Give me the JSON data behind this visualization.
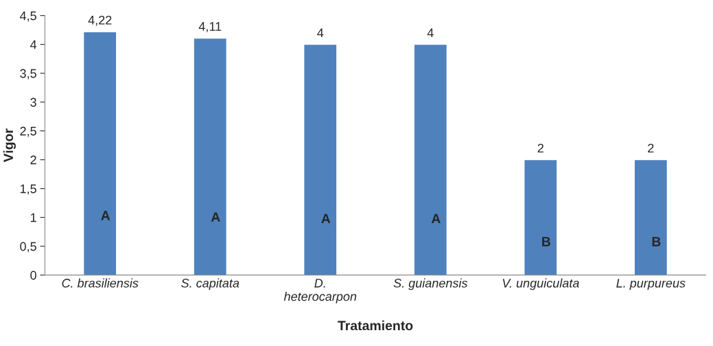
{
  "chart_data": {
    "type": "bar",
    "xlabel": "Tratamiento",
    "ylabel": "Vigor",
    "categories": [
      "C. brasiliensis",
      "S. capitata",
      "D.\nheterocarpon",
      "S. guianensis",
      "V. unguiculata",
      "L. purpureus"
    ],
    "values": [
      4.22,
      4.11,
      4,
      4,
      2,
      2
    ],
    "color": "#4f81bd",
    "value_labels": [
      "4,22",
      "4,11",
      "4",
      "4",
      "2",
      "2"
    ],
    "ylim": [
      0,
      4.5
    ],
    "yticks": [
      0,
      {
        "value": 0.5,
        "label": "0,5"
      },
      1,
      {
        "value": 1.5,
        "label": "1,5"
      },
      2,
      {
        "value": 2.5,
        "label": "2,5"
      },
      3,
      {
        "value": 3.5,
        "label": "3,5"
      },
      4,
      {
        "value": 4.5,
        "label": "4,5"
      }
    ],
    "grid": false,
    "legend": false,
    "annotations": [
      "A",
      "A",
      "A",
      "A",
      "B",
      "B"
    ]
  }
}
